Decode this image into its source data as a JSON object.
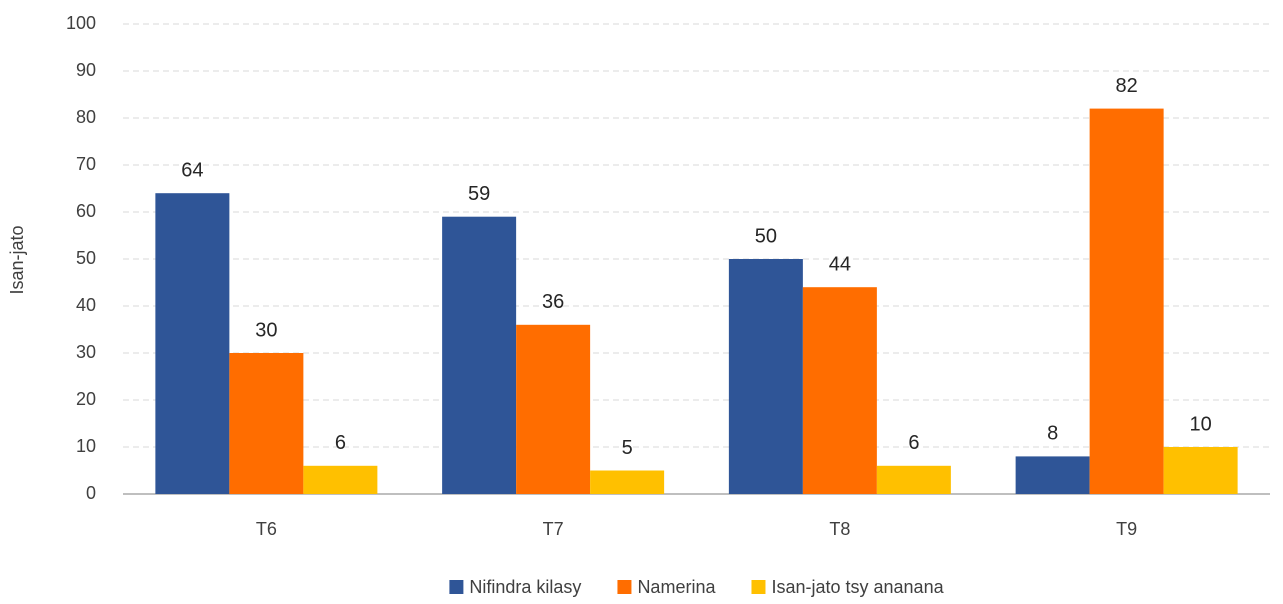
{
  "chart_data": {
    "type": "bar",
    "categories": [
      "T6",
      "T7",
      "T8",
      "T9"
    ],
    "y_label": "Isan-jato",
    "series": [
      {
        "name": "Nifindra kilasy",
        "color": "#2f5597",
        "values": [
          64,
          59,
          50,
          8
        ]
      },
      {
        "name": "Namerina",
        "color": "#ff6d00",
        "values": [
          30,
          36,
          44,
          82
        ]
      },
      {
        "name": "Isan-jato tsy ananana",
        "color": "#ffc000",
        "values": [
          6,
          5,
          6,
          10
        ]
      }
    ],
    "ylim": [
      0,
      100
    ],
    "yticks": [
      0,
      10,
      20,
      30,
      40,
      50,
      60,
      70,
      80,
      90,
      100
    ],
    "grid": true,
    "legend": "bottom"
  }
}
